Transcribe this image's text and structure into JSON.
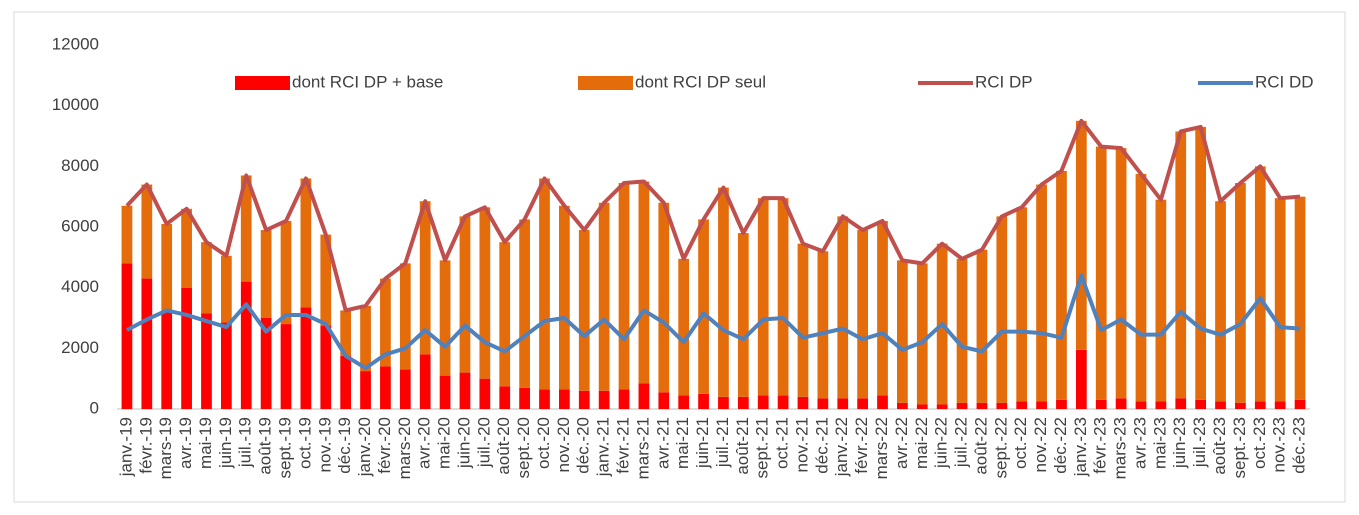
{
  "chart_data": {
    "type": "bar",
    "stacked": true,
    "categories": [
      "janv.-19",
      "févr.-19",
      "mars-19",
      "avr.-19",
      "mai-19",
      "juin-19",
      "juil.-19",
      "août-19",
      "sept.-19",
      "oct.-19",
      "nov.-19",
      "déc.-19",
      "janv.-20",
      "févr.-20",
      "mars-20",
      "avr.-20",
      "mai-20",
      "juin-20",
      "juil.-20",
      "août-20",
      "sept.-20",
      "oct.-20",
      "nov.-20",
      "déc.-20",
      "janv.-21",
      "févr.-21",
      "mars-21",
      "avr.-21",
      "mai-21",
      "juin-21",
      "juil.-21",
      "août-21",
      "sept.-21",
      "oct.-21",
      "nov.-21",
      "déc.-21",
      "janv.-22",
      "févr.-22",
      "mars-22",
      "avr.-22",
      "mai-22",
      "juin-22",
      "juil.-22",
      "août-22",
      "sept.-22",
      "oct.-22",
      "nov.-22",
      "déc.-22",
      "janv.-23",
      "févr.-23",
      "mars-23",
      "avr.-23",
      "mai-23",
      "juin-23",
      "juil.-23",
      "août-23",
      "sept.-23",
      "oct.-23",
      "nov.-23",
      "déc.-23"
    ],
    "series": [
      {
        "name": "dont RCI DP + base",
        "type": "bar",
        "color": "#ff0000",
        "values": [
          4800,
          4300,
          3200,
          4000,
          3150,
          2850,
          4200,
          3000,
          2800,
          3350,
          2750,
          1750,
          1250,
          1400,
          1300,
          1800,
          1100,
          1200,
          1000,
          750,
          700,
          650,
          650,
          600,
          600,
          650,
          850,
          550,
          450,
          500,
          400,
          400,
          450,
          450,
          400,
          350,
          350,
          350,
          450,
          200,
          150,
          150,
          200,
          200,
          200,
          250,
          250,
          300,
          1950,
          300,
          350,
          250,
          250,
          350,
          300,
          250,
          200,
          250,
          250,
          300
        ]
      },
      {
        "name": "dont RCI DP seul",
        "type": "bar",
        "color": "#e46c0a",
        "values": [
          1900,
          3100,
          2900,
          2600,
          2350,
          2200,
          3500,
          2900,
          3400,
          4250,
          3000,
          1500,
          2150,
          2900,
          3500,
          5050,
          3800,
          5150,
          5650,
          4750,
          5550,
          6950,
          6050,
          5300,
          6200,
          6800,
          6650,
          6250,
          4500,
          5750,
          6900,
          5400,
          6500,
          6500,
          5050,
          4850,
          6000,
          5550,
          5750,
          4700,
          4650,
          5300,
          4750,
          5050,
          6150,
          6400,
          7150,
          7550,
          7550,
          8350,
          8250,
          7500,
          6650,
          8800,
          9000,
          6600,
          7250,
          7750,
          6700,
          6700
        ]
      },
      {
        "name": "RCI DP",
        "type": "line",
        "color": "#c0504d",
        "values": [
          6700,
          7400,
          6100,
          6600,
          5500,
          5050,
          7700,
          5900,
          6200,
          7600,
          5750,
          3250,
          3400,
          4300,
          4800,
          6850,
          4900,
          6350,
          6650,
          5500,
          6250,
          7600,
          6700,
          5900,
          6800,
          7450,
          7500,
          6800,
          4950,
          6250,
          7300,
          5800,
          6950,
          6950,
          5450,
          5200,
          6350,
          5900,
          6200,
          4900,
          4800,
          5450,
          4950,
          5250,
          6350,
          6650,
          7400,
          7850,
          9500,
          8650,
          8600,
          7750,
          6900,
          9150,
          9300,
          6850,
          7450,
          8000,
          6950,
          7000
        ]
      },
      {
        "name": "RCI DD",
        "type": "line",
        "color": "#4f81bd",
        "values": [
          2600,
          2950,
          3250,
          3100,
          2900,
          2700,
          3450,
          2550,
          3100,
          3100,
          2800,
          1750,
          1350,
          1800,
          2000,
          2600,
          2050,
          2750,
          2200,
          1900,
          2400,
          2900,
          3000,
          2400,
          2950,
          2300,
          3250,
          2850,
          2200,
          3150,
          2600,
          2300,
          2950,
          3000,
          2350,
          2500,
          2650,
          2300,
          2500,
          1950,
          2200,
          2800,
          2050,
          1900,
          2550,
          2550,
          2500,
          2350,
          4400,
          2600,
          2950,
          2450,
          2450,
          3200,
          2650,
          2450,
          2800,
          3650,
          2700,
          2650
        ]
      }
    ],
    "ylim": [
      0,
      12000
    ],
    "yticks": [
      0,
      2000,
      4000,
      6000,
      8000,
      10000,
      12000
    ],
    "grid": false,
    "legend": "top"
  }
}
